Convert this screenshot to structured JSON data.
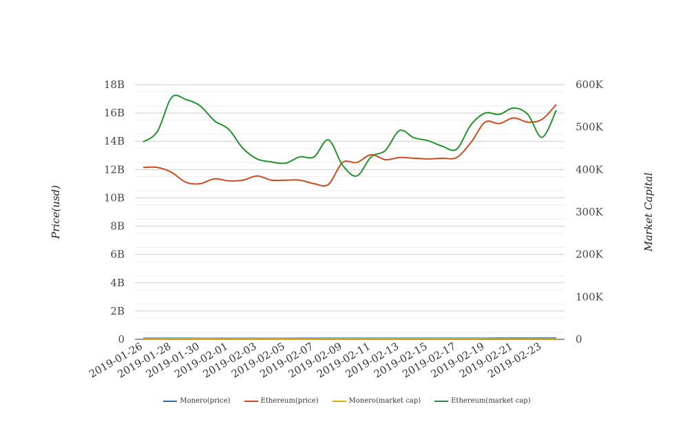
{
  "chart_data": {
    "type": "line",
    "ylabel_left": "Price(usd)",
    "ylabel_right": "Market Capital",
    "left_axis": {
      "ylim": [
        0,
        18000000000
      ],
      "ticks": [
        "0",
        "2B",
        "4B",
        "6B",
        "8B",
        "10B",
        "12B",
        "14B",
        "16B",
        "18B"
      ]
    },
    "right_axis": {
      "ylim": [
        0,
        600000
      ],
      "ticks": [
        "0",
        "100K",
        "200K",
        "300K",
        "400K",
        "500K",
        "600K"
      ]
    },
    "x_ticks": [
      "2019-01-26",
      "2019-01-28",
      "2019-01-30",
      "2019-02-01",
      "2019-02-03",
      "2019-02-05",
      "2019-02-07",
      "2019-02-09",
      "2019-02-11",
      "2019-02-13",
      "2019-02-15",
      "2019-02-17",
      "2019-02-19",
      "2019-02-21",
      "2019-02-23"
    ],
    "x": [
      "2019-01-26",
      "2019-01-27",
      "2019-01-28",
      "2019-01-29",
      "2019-01-30",
      "2019-01-31",
      "2019-02-01",
      "2019-02-02",
      "2019-02-03",
      "2019-02-04",
      "2019-02-05",
      "2019-02-06",
      "2019-02-07",
      "2019-02-08",
      "2019-02-09",
      "2019-02-10",
      "2019-02-11",
      "2019-02-12",
      "2019-02-13",
      "2019-02-14",
      "2019-02-15",
      "2019-02-16",
      "2019-02-17",
      "2019-02-18",
      "2019-02-19",
      "2019-02-20",
      "2019-02-21",
      "2019-02-22",
      "2019-02-23",
      "2019-02-24"
    ],
    "series": [
      {
        "name": "Monero(price)",
        "axis": "left",
        "color": "#2e6aa8",
        "values": [
          0.08,
          0.08,
          0.08,
          0.08,
          0.07,
          0.07,
          0.07,
          0.07,
          0.07,
          0.07,
          0.07,
          0.08,
          0.08,
          0.08,
          0.08,
          0.08,
          0.08,
          0.08,
          0.08,
          0.08,
          0.08,
          0.08,
          0.08,
          0.08,
          0.08,
          0.09,
          0.09,
          0.09,
          0.09,
          0.1
        ]
      },
      {
        "name": "Ethereum(price)",
        "axis": "left",
        "color": "#cc4a1d",
        "values": [
          12.15,
          12.15,
          11.8,
          11.1,
          11.0,
          11.35,
          11.2,
          11.25,
          11.55,
          11.25,
          11.25,
          11.25,
          11.0,
          10.95,
          12.5,
          12.5,
          13.05,
          12.7,
          12.85,
          12.8,
          12.75,
          12.8,
          12.85,
          13.9,
          15.35,
          15.25,
          15.65,
          15.35,
          15.55,
          16.6
        ]
      },
      {
        "name": "Monero(market cap)",
        "axis": "right",
        "color": "#e0a800",
        "values": [
          1500,
          1520,
          1550,
          1560,
          1480,
          1450,
          1460,
          1470,
          1480,
          1470,
          1470,
          1490,
          1500,
          1550,
          1600,
          1620,
          1640,
          1650,
          1660,
          1650,
          1640,
          1640,
          1650,
          1700,
          1760,
          1780,
          1800,
          1820,
          1850,
          1900
        ]
      },
      {
        "name": "Ethereum(market cap)",
        "axis": "right",
        "color": "#22922b",
        "values": [
          465000,
          490000,
          570000,
          565000,
          550000,
          515000,
          495000,
          450000,
          425000,
          418000,
          415000,
          430000,
          430000,
          470000,
          410000,
          385000,
          430000,
          445000,
          492000,
          475000,
          468000,
          455000,
          448000,
          505000,
          533000,
          530000,
          545000,
          530000,
          476000,
          540000
        ]
      }
    ]
  }
}
